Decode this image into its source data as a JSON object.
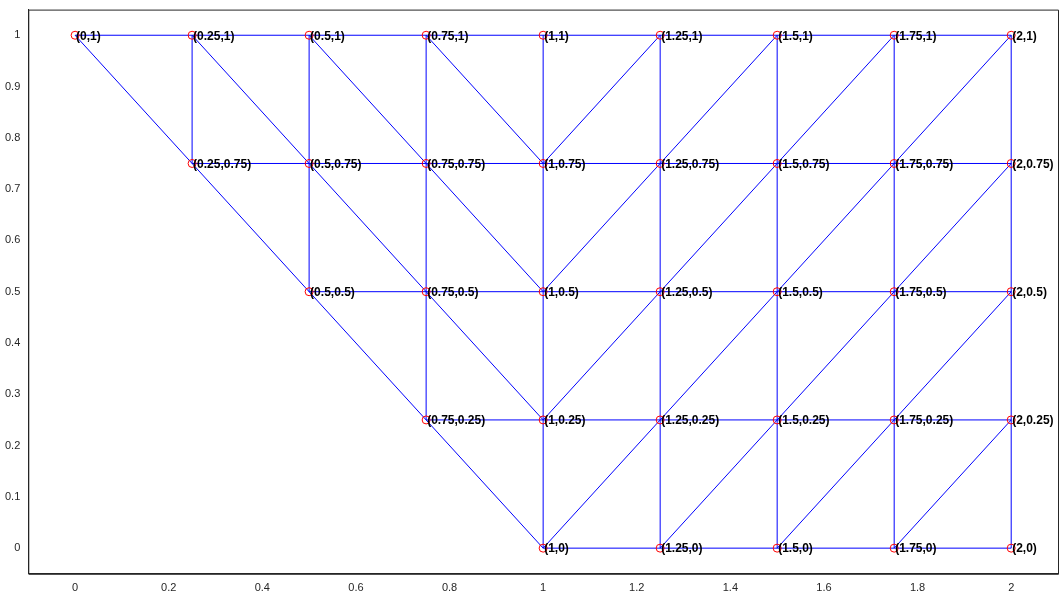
{
  "chart_data": {
    "type": "scatter",
    "xlim": [
      -0.1,
      2.1
    ],
    "ylim": [
      -0.05,
      1.05
    ],
    "xticks": [
      0,
      0.2,
      0.4,
      0.6,
      0.8,
      1,
      1.2,
      1.4,
      1.6,
      1.8,
      2
    ],
    "yticks": [
      0,
      0.1,
      0.2,
      0.3,
      0.4,
      0.5,
      0.6,
      0.7,
      0.8,
      0.9,
      1
    ],
    "marker": "circle",
    "series": [
      {
        "color": "#ff0000",
        "x": [
          0,
          0.25,
          0.5,
          0.75,
          1,
          1.25,
          1.5,
          1.75,
          2,
          0.25,
          0.5,
          0.75,
          1,
          1.25,
          1.5,
          1.75,
          2,
          0.5,
          0.75,
          1,
          1.25,
          1.5,
          1.75,
          2,
          0.75,
          1,
          1.25,
          1.5,
          1.75,
          2,
          1,
          1.25,
          1.5,
          1.75,
          2
        ],
        "values": [
          1,
          1,
          1,
          1,
          1,
          1,
          1,
          1,
          1,
          0.75,
          0.75,
          0.75,
          0.75,
          0.75,
          0.75,
          0.75,
          0.75,
          0.5,
          0.5,
          0.5,
          0.5,
          0.5,
          0.5,
          0.5,
          0.25,
          0.25,
          0.25,
          0.25,
          0.25,
          0.25,
          0,
          0,
          0,
          0,
          0
        ]
      },
      {
        "type": "line",
        "color": "#0000ff",
        "marker": "none",
        "x": [
          0,
          2
        ],
        "values": [
          1,
          1
        ]
      },
      {
        "type": "line",
        "color": "#0000ff",
        "marker": "none",
        "x": [
          0.25,
          2
        ],
        "values": [
          0.75,
          0.75
        ]
      },
      {
        "type": "line",
        "color": "#0000ff",
        "marker": "none",
        "x": [
          0.5,
          2
        ],
        "values": [
          0.5,
          0.5
        ]
      },
      {
        "type": "line",
        "color": "#0000ff",
        "marker": "none",
        "x": [
          0.75,
          2
        ],
        "values": [
          0.25,
          0.25
        ]
      },
      {
        "type": "line",
        "color": "#0000ff",
        "marker": "none",
        "x": [
          1,
          2
        ],
        "values": [
          0,
          0
        ]
      },
      {
        "type": "line",
        "color": "#0000ff",
        "marker": "none",
        "x": [
          0.25,
          0.25
        ],
        "values": [
          0.75,
          1
        ]
      },
      {
        "type": "line",
        "color": "#0000ff",
        "marker": "none",
        "x": [
          0.5,
          0.5
        ],
        "values": [
          0.5,
          1
        ]
      },
      {
        "type": "line",
        "color": "#0000ff",
        "marker": "none",
        "x": [
          0.75,
          0.75
        ],
        "values": [
          0.25,
          1
        ]
      },
      {
        "type": "line",
        "color": "#0000ff",
        "marker": "none",
        "x": [
          1,
          1
        ],
        "values": [
          0,
          1
        ]
      },
      {
        "type": "line",
        "color": "#0000ff",
        "marker": "none",
        "x": [
          1.25,
          1.25
        ],
        "values": [
          0,
          1
        ]
      },
      {
        "type": "line",
        "color": "#0000ff",
        "marker": "none",
        "x": [
          1.5,
          1.5
        ],
        "values": [
          0,
          1
        ]
      },
      {
        "type": "line",
        "color": "#0000ff",
        "marker": "none",
        "x": [
          1.75,
          1.75
        ],
        "values": [
          0,
          1
        ]
      },
      {
        "type": "line",
        "color": "#0000ff",
        "marker": "none",
        "x": [
          2,
          2
        ],
        "values": [
          0,
          1
        ]
      },
      {
        "type": "line",
        "color": "#0000ff",
        "marker": "none",
        "x": [
          0,
          1
        ],
        "values": [
          1,
          0
        ]
      },
      {
        "type": "line",
        "color": "#0000ff",
        "marker": "none",
        "x": [
          0.25,
          1
        ],
        "values": [
          1,
          0.25
        ]
      },
      {
        "type": "line",
        "color": "#0000ff",
        "marker": "none",
        "x": [
          0.5,
          1
        ],
        "values": [
          1,
          0.5
        ]
      },
      {
        "type": "line",
        "color": "#0000ff",
        "marker": "none",
        "x": [
          0.75,
          1
        ],
        "values": [
          1,
          0.75
        ]
      },
      {
        "type": "line",
        "color": "#0000ff",
        "marker": "none",
        "x": [
          1,
          1.25
        ],
        "values": [
          0.75,
          1
        ]
      },
      {
        "type": "line",
        "color": "#0000ff",
        "marker": "none",
        "x": [
          1,
          1.5
        ],
        "values": [
          0.5,
          1
        ]
      },
      {
        "type": "line",
        "color": "#0000ff",
        "marker": "none",
        "x": [
          1,
          1.75
        ],
        "values": [
          0.25,
          1
        ]
      },
      {
        "type": "line",
        "color": "#0000ff",
        "marker": "none",
        "x": [
          1,
          2
        ],
        "values": [
          0,
          1
        ]
      },
      {
        "type": "line",
        "color": "#0000ff",
        "marker": "none",
        "x": [
          1.25,
          2
        ],
        "values": [
          0,
          0.75
        ]
      },
      {
        "type": "line",
        "color": "#0000ff",
        "marker": "none",
        "x": [
          1.5,
          2
        ],
        "values": [
          0,
          0.5
        ]
      },
      {
        "type": "line",
        "color": "#0000ff",
        "marker": "none",
        "x": [
          1.75,
          2
        ],
        "values": [
          0,
          0.25
        ]
      }
    ],
    "annotations": [
      {
        "text": "(0,1)",
        "x": 0,
        "y": 1
      },
      {
        "text": "(0.25,1)",
        "x": 0.25,
        "y": 1
      },
      {
        "text": "(0.5,1)",
        "x": 0.5,
        "y": 1
      },
      {
        "text": "(0.75,1)",
        "x": 0.75,
        "y": 1
      },
      {
        "text": "(1,1)",
        "x": 1,
        "y": 1
      },
      {
        "text": "(1.25,1)",
        "x": 1.25,
        "y": 1
      },
      {
        "text": "(1.5,1)",
        "x": 1.5,
        "y": 1
      },
      {
        "text": "(1.75,1)",
        "x": 1.75,
        "y": 1
      },
      {
        "text": "(2,1)",
        "x": 2,
        "y": 1
      },
      {
        "text": "(0.25,0.75)",
        "x": 0.25,
        "y": 0.75
      },
      {
        "text": "(0.5,0.75)",
        "x": 0.5,
        "y": 0.75
      },
      {
        "text": "(0.75,0.75)",
        "x": 0.75,
        "y": 0.75
      },
      {
        "text": "(1,0.75)",
        "x": 1,
        "y": 0.75
      },
      {
        "text": "(1.25,0.75)",
        "x": 1.25,
        "y": 0.75
      },
      {
        "text": "(1.5,0.75)",
        "x": 1.5,
        "y": 0.75
      },
      {
        "text": "(1.75,0.75)",
        "x": 1.75,
        "y": 0.75
      },
      {
        "text": "(2,0.75)",
        "x": 2,
        "y": 0.75
      },
      {
        "text": "(0.5,0.5)",
        "x": 0.5,
        "y": 0.5
      },
      {
        "text": "(0.75,0.5)",
        "x": 0.75,
        "y": 0.5
      },
      {
        "text": "(1,0.5)",
        "x": 1,
        "y": 0.5
      },
      {
        "text": "(1.25,0.5)",
        "x": 1.25,
        "y": 0.5
      },
      {
        "text": "(1.5,0.5)",
        "x": 1.5,
        "y": 0.5
      },
      {
        "text": "(1.75,0.5)",
        "x": 1.75,
        "y": 0.5
      },
      {
        "text": "(2,0.5)",
        "x": 2,
        "y": 0.5
      },
      {
        "text": "(0.75,0.25)",
        "x": 0.75,
        "y": 0.25
      },
      {
        "text": "(1,0.25)",
        "x": 1,
        "y": 0.25
      },
      {
        "text": "(1.25,0.25)",
        "x": 1.25,
        "y": 0.25
      },
      {
        "text": "(1.5,0.25)",
        "x": 1.5,
        "y": 0.25
      },
      {
        "text": "(1.75,0.25)",
        "x": 1.75,
        "y": 0.25
      },
      {
        "text": "(2,0.25)",
        "x": 2,
        "y": 0.25
      },
      {
        "text": "(1,0)",
        "x": 1,
        "y": 0
      },
      {
        "text": "(1.25,0)",
        "x": 1.25,
        "y": 0
      },
      {
        "text": "(1.5,0)",
        "x": 1.5,
        "y": 0
      },
      {
        "text": "(1.75,0)",
        "x": 1.75,
        "y": 0
      },
      {
        "text": "(2,0)",
        "x": 2,
        "y": 0
      }
    ]
  }
}
